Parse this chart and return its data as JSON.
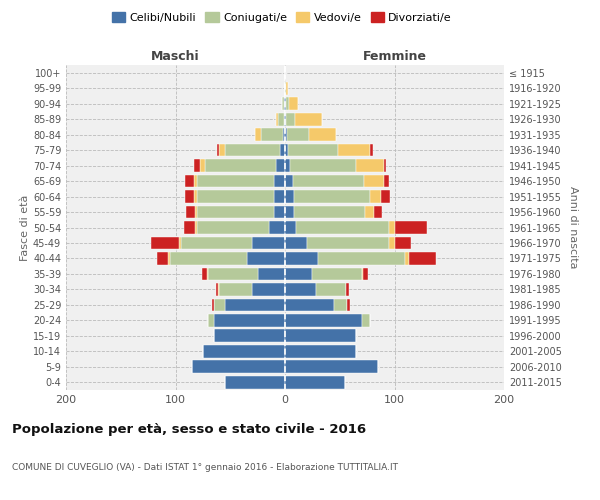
{
  "age_groups": [
    "0-4",
    "5-9",
    "10-14",
    "15-19",
    "20-24",
    "25-29",
    "30-34",
    "35-39",
    "40-44",
    "45-49",
    "50-54",
    "55-59",
    "60-64",
    "65-69",
    "70-74",
    "75-79",
    "80-84",
    "85-89",
    "90-94",
    "95-99",
    "100+"
  ],
  "birth_years": [
    "2011-2015",
    "2006-2010",
    "2001-2005",
    "1996-2000",
    "1991-1995",
    "1986-1990",
    "1981-1985",
    "1976-1980",
    "1971-1975",
    "1966-1970",
    "1961-1965",
    "1956-1960",
    "1951-1955",
    "1946-1950",
    "1941-1945",
    "1936-1940",
    "1931-1935",
    "1926-1930",
    "1921-1925",
    "1916-1920",
    "≤ 1915"
  ],
  "males": {
    "celibi": [
      55,
      85,
      75,
      65,
      65,
      55,
      30,
      25,
      35,
      30,
      15,
      10,
      10,
      10,
      8,
      5,
      2,
      1,
      1,
      0,
      0
    ],
    "coniugati": [
      0,
      0,
      0,
      0,
      5,
      10,
      30,
      45,
      70,
      65,
      65,
      70,
      70,
      70,
      65,
      50,
      20,
      5,
      2,
      0,
      0
    ],
    "vedovi": [
      0,
      0,
      0,
      0,
      0,
      0,
      1,
      1,
      2,
      2,
      2,
      2,
      3,
      3,
      5,
      5,
      5,
      2,
      0,
      0,
      0
    ],
    "divorziati": [
      0,
      0,
      0,
      0,
      0,
      2,
      2,
      5,
      10,
      25,
      10,
      8,
      8,
      8,
      5,
      2,
      0,
      0,
      0,
      0,
      0
    ]
  },
  "females": {
    "nubili": [
      55,
      85,
      65,
      65,
      70,
      45,
      28,
      25,
      30,
      20,
      10,
      8,
      8,
      7,
      5,
      3,
      2,
      1,
      1,
      0,
      0
    ],
    "coniugate": [
      0,
      0,
      0,
      0,
      8,
      12,
      28,
      45,
      80,
      75,
      85,
      65,
      70,
      65,
      60,
      45,
      20,
      8,
      3,
      1,
      0
    ],
    "vedove": [
      0,
      0,
      0,
      0,
      0,
      0,
      0,
      1,
      3,
      5,
      5,
      8,
      10,
      18,
      25,
      30,
      25,
      25,
      8,
      2,
      0
    ],
    "divorziate": [
      0,
      0,
      0,
      0,
      0,
      2,
      2,
      5,
      25,
      15,
      30,
      8,
      8,
      5,
      2,
      2,
      0,
      0,
      0,
      0,
      0
    ]
  },
  "colors": {
    "celibi": "#4472a8",
    "coniugati": "#b5c99a",
    "vedovi": "#f5c96a",
    "divorziati": "#cc2222"
  },
  "xlim": 200,
  "title": "Popolazione per età, sesso e stato civile - 2016",
  "subtitle": "COMUNE DI CUVEGLIO (VA) - Dati ISTAT 1° gennaio 2016 - Elaborazione TUTTITALIA.IT",
  "ylabel_left": "Fasce di età",
  "ylabel_right": "Anni di nascita",
  "xlabel_left": "Maschi",
  "xlabel_right": "Femmine",
  "bg_color": "#f0f0f0",
  "grid_color": "#bbbbbb"
}
